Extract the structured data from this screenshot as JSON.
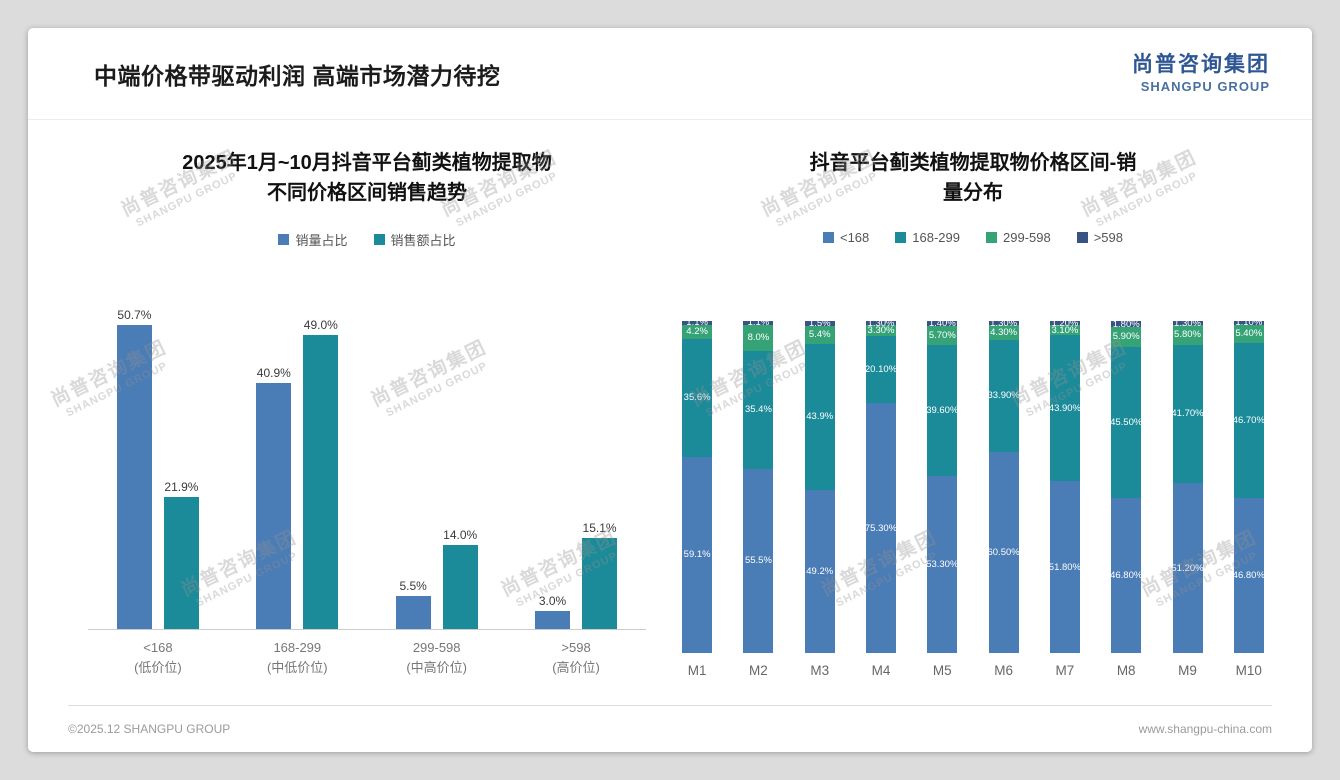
{
  "header": {
    "title": "中端价格带驱动利润 高端市场潜力待挖",
    "logo_cn": "尚普咨询集团",
    "logo_en": "SHANGPU GROUP"
  },
  "footer": {
    "copyright": "©2025.12 SHANGPU GROUP",
    "website": "www.shangpu-china.com"
  },
  "watermark": {
    "line1": "尚普咨询集团",
    "line2": "SHANGPU GROUP"
  },
  "colors": {
    "blue": "#4a7cb5",
    "teal": "#1b8a99",
    "green": "#36a376",
    "navy": "#3a5385"
  },
  "chart_data": [
    {
      "type": "bar",
      "title": "2025年1月~10月抖音平台蓟类植物提取物\n不同价格区间销售趋势",
      "categories": [
        "<168\n(低价位)",
        "168-299\n(中低价位)",
        "299-598\n(中高价位)",
        ">598\n(高价位)"
      ],
      "series": [
        {
          "name": "销量占比",
          "color_key": "blue",
          "values": [
            50.7,
            40.9,
            5.5,
            3.0
          ],
          "labels": [
            "50.7%",
            "40.9%",
            "5.5%",
            "3.0%"
          ]
        },
        {
          "name": "销售额占比",
          "color_key": "teal",
          "values": [
            21.9,
            49.0,
            14.0,
            15.1
          ],
          "labels": [
            "21.9%",
            "49.0%",
            "14.0%",
            "15.1%"
          ]
        }
      ],
      "xlabel": "",
      "ylabel": "",
      "ylim": [
        0,
        55
      ],
      "grid": false,
      "legend_position": "top"
    },
    {
      "type": "bar",
      "subtype": "stacked-percent",
      "title": "抖音平台蓟类植物提取物价格区间-销\n量分布",
      "categories": [
        "M1",
        "M2",
        "M3",
        "M4",
        "M5",
        "M6",
        "M7",
        "M8",
        "M9",
        "M10"
      ],
      "series": [
        {
          "name": "<168",
          "color_key": "blue",
          "values": [
            59.1,
            55.5,
            49.2,
            75.3,
            53.3,
            60.5,
            51.8,
            46.8,
            51.2,
            46.8
          ],
          "labels": [
            "59.1%",
            "55.5%",
            "49.2%",
            "75.30%",
            "53.30%",
            "60.50%",
            "51.80%",
            "46.80%",
            "51.20%",
            "46.80%"
          ]
        },
        {
          "name": "168-299",
          "color_key": "teal",
          "values": [
            35.6,
            35.4,
            43.9,
            20.1,
            39.6,
            33.9,
            43.9,
            45.5,
            41.7,
            46.7
          ],
          "labels": [
            "35.6%",
            "35.4%",
            "43.9%",
            "20.10%",
            "39.60%",
            "33.90%",
            "43.90%",
            "45.50%",
            "41.70%",
            "46.70%"
          ]
        },
        {
          "name": "299-598",
          "color_key": "green",
          "values": [
            4.2,
            8.0,
            5.4,
            3.3,
            5.7,
            4.3,
            3.1,
            5.9,
            5.8,
            5.4
          ],
          "labels": [
            "4.2%",
            "8.0%",
            "5.4%",
            "3.30%",
            "5.70%",
            "4.30%",
            "3.10%",
            "5.90%",
            "5.80%",
            "5.40%"
          ]
        },
        {
          "name": ">598",
          "color_key": "navy",
          "values": [
            1.1,
            1.1,
            1.5,
            1.3,
            1.4,
            1.3,
            1.2,
            1.8,
            1.3,
            1.1
          ],
          "labels": [
            "1.1%",
            "1.1%",
            "1.5%",
            "1.30%",
            "1.40%",
            "1.30%",
            "1.20%",
            "1.80%",
            "1.30%",
            "1.10%"
          ]
        }
      ],
      "xlabel": "",
      "ylabel": "",
      "ylim": [
        0,
        100
      ],
      "grid": false,
      "legend_position": "top"
    }
  ]
}
